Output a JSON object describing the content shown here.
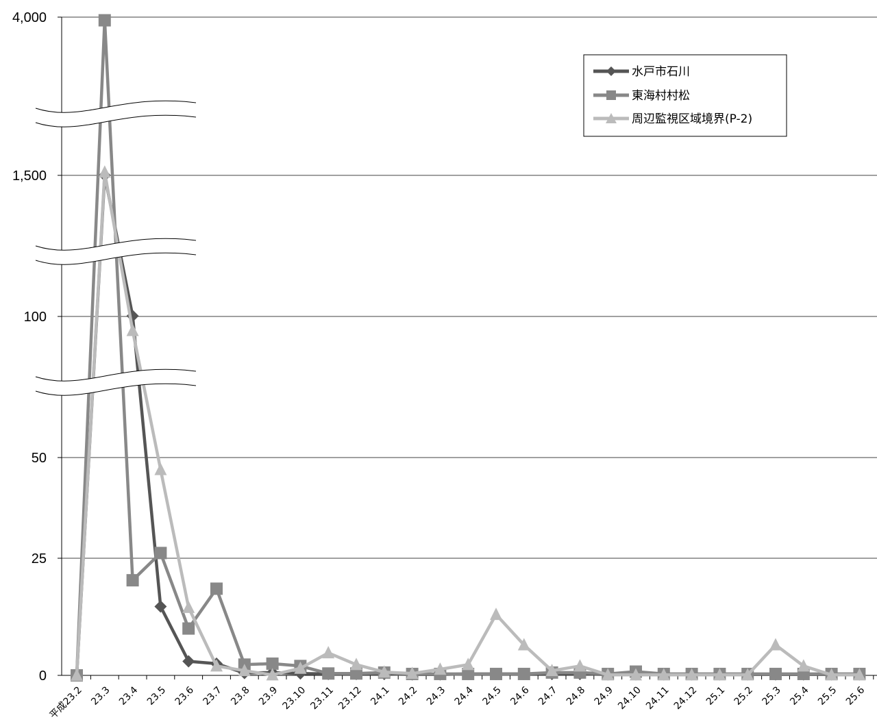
{
  "chart_data": {
    "type": "line",
    "y_ticks": [
      "0",
      "25",
      "50",
      "100",
      "1,500",
      "4,000"
    ],
    "y_axis_breaks": 3,
    "categories": [
      "平成23.2",
      "23.3",
      "23.4",
      "23.5",
      "23.6",
      "23.7",
      "23.8",
      "23.9",
      "23.10",
      "23.11",
      "23.12",
      "24.1",
      "24.2",
      "24.3",
      "24.4",
      "24.5",
      "24.6",
      "24.7",
      "24.8",
      "24.9",
      "24.10",
      "24.11",
      "24.12",
      "25.1",
      "25.2",
      "25.3",
      "25.4",
      "25.5",
      "25.6"
    ],
    "series": [
      {
        "name": "水戸市石川",
        "color": "#555555",
        "marker": "diamond",
        "values": [
          0,
          1500,
          105,
          14.7,
          3,
          2.5,
          0.5,
          0.6,
          0.4,
          0.3,
          0.3,
          0.3,
          0.2,
          0.2,
          0.3,
          0.3,
          0.3,
          0.3,
          0.3,
          0.2,
          0.2,
          0.2,
          0.2,
          0.2,
          0.2,
          0.2,
          0.2,
          0.2,
          0.2
        ]
      },
      {
        "name": "東海村村松",
        "color": "#888888",
        "marker": "square",
        "values": [
          0,
          3950,
          20.3,
          26.3,
          10,
          18.5,
          2.3,
          2.5,
          2,
          0.4,
          0.4,
          0.6,
          0.3,
          0.3,
          0.3,
          0.3,
          0.3,
          0.6,
          0.6,
          0.3,
          0.8,
          0.3,
          0.3,
          0.3,
          0.3,
          0.3,
          0.3,
          0.3,
          0.3
        ]
      },
      {
        "name": "周辺監視区域境界(P-2)",
        "color": "#bbbbbb",
        "marker": "triangle",
        "values": [
          0,
          1550,
          95,
          47,
          14.5,
          2,
          1,
          0.1,
          1.5,
          4.8,
          2.3,
          0.7,
          0.4,
          1.3,
          2.3,
          13,
          6.5,
          1,
          2,
          0.1,
          0.1,
          0.1,
          0.1,
          0.1,
          0.1,
          6.5,
          2,
          0.1,
          0.1
        ]
      }
    ],
    "legend_position": "top-right",
    "grid": true
  },
  "colors": {
    "grid": "#000000",
    "axis": "#000000"
  }
}
